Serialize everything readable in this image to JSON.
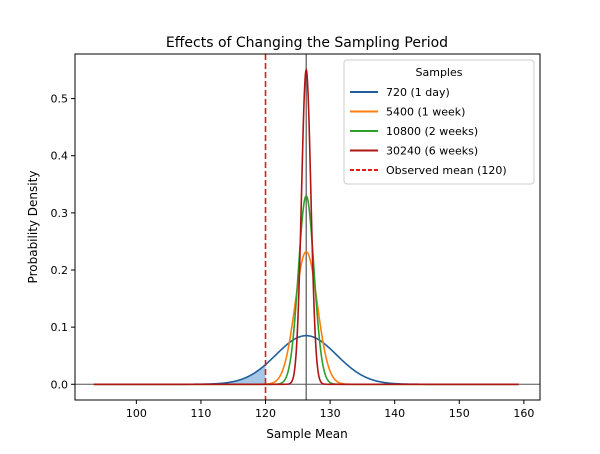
{
  "chart_data": {
    "type": "line",
    "title": "Effects of Changing the Sampling Period",
    "xlabel": "Sample Mean",
    "ylabel": "Probability Density",
    "xlim": [
      90.5,
      162.5
    ],
    "ylim": [
      -0.0275,
      0.578
    ],
    "xticks": [
      100,
      110,
      120,
      130,
      140,
      150,
      160
    ],
    "xtick_labels": [
      "100",
      "110",
      "120",
      "130",
      "140",
      "150",
      "160"
    ],
    "yticks": [
      0.0,
      0.1,
      0.2,
      0.3,
      0.4,
      0.5
    ],
    "ytick_labels": [
      "0.0",
      "0.1",
      "0.2",
      "0.3",
      "0.4",
      "0.5"
    ],
    "grid": false,
    "x_range": [
      93.4,
      159.2
    ],
    "population_mean": 126.3,
    "reference_lines": {
      "vertical_mean": 126.3,
      "horizontal_zero": 0.0,
      "observed_mean": 120
    },
    "shaded_region": {
      "series": "720 (1 day)",
      "from": 93.4,
      "to": 120,
      "color": "#a6c8e4"
    },
    "legend": {
      "title": "Samples",
      "placement": "top-right"
    },
    "series": [
      {
        "name": "720 (1 day)",
        "color": "#1f5f9c",
        "kind": "normal",
        "mean": 126.3,
        "sd": 4.69,
        "peak": 0.085
      },
      {
        "name": "5400 (1 week)",
        "color": "#ff7f0e",
        "kind": "normal",
        "mean": 126.3,
        "sd": 1.72,
        "peak": 0.232
      },
      {
        "name": "10800 (2 weeks)",
        "color": "#2ca02c",
        "kind": "normal",
        "mean": 126.3,
        "sd": 1.21,
        "peak": 0.329
      },
      {
        "name": "30240 (6 weeks)",
        "color": "#b01515",
        "kind": "normal",
        "mean": 126.3,
        "sd": 0.725,
        "peak": 0.55
      }
    ],
    "observed_mean_line": {
      "name": "Observed mean (120)",
      "x": 120,
      "color": "#e31a1c",
      "style": "dashed"
    }
  }
}
